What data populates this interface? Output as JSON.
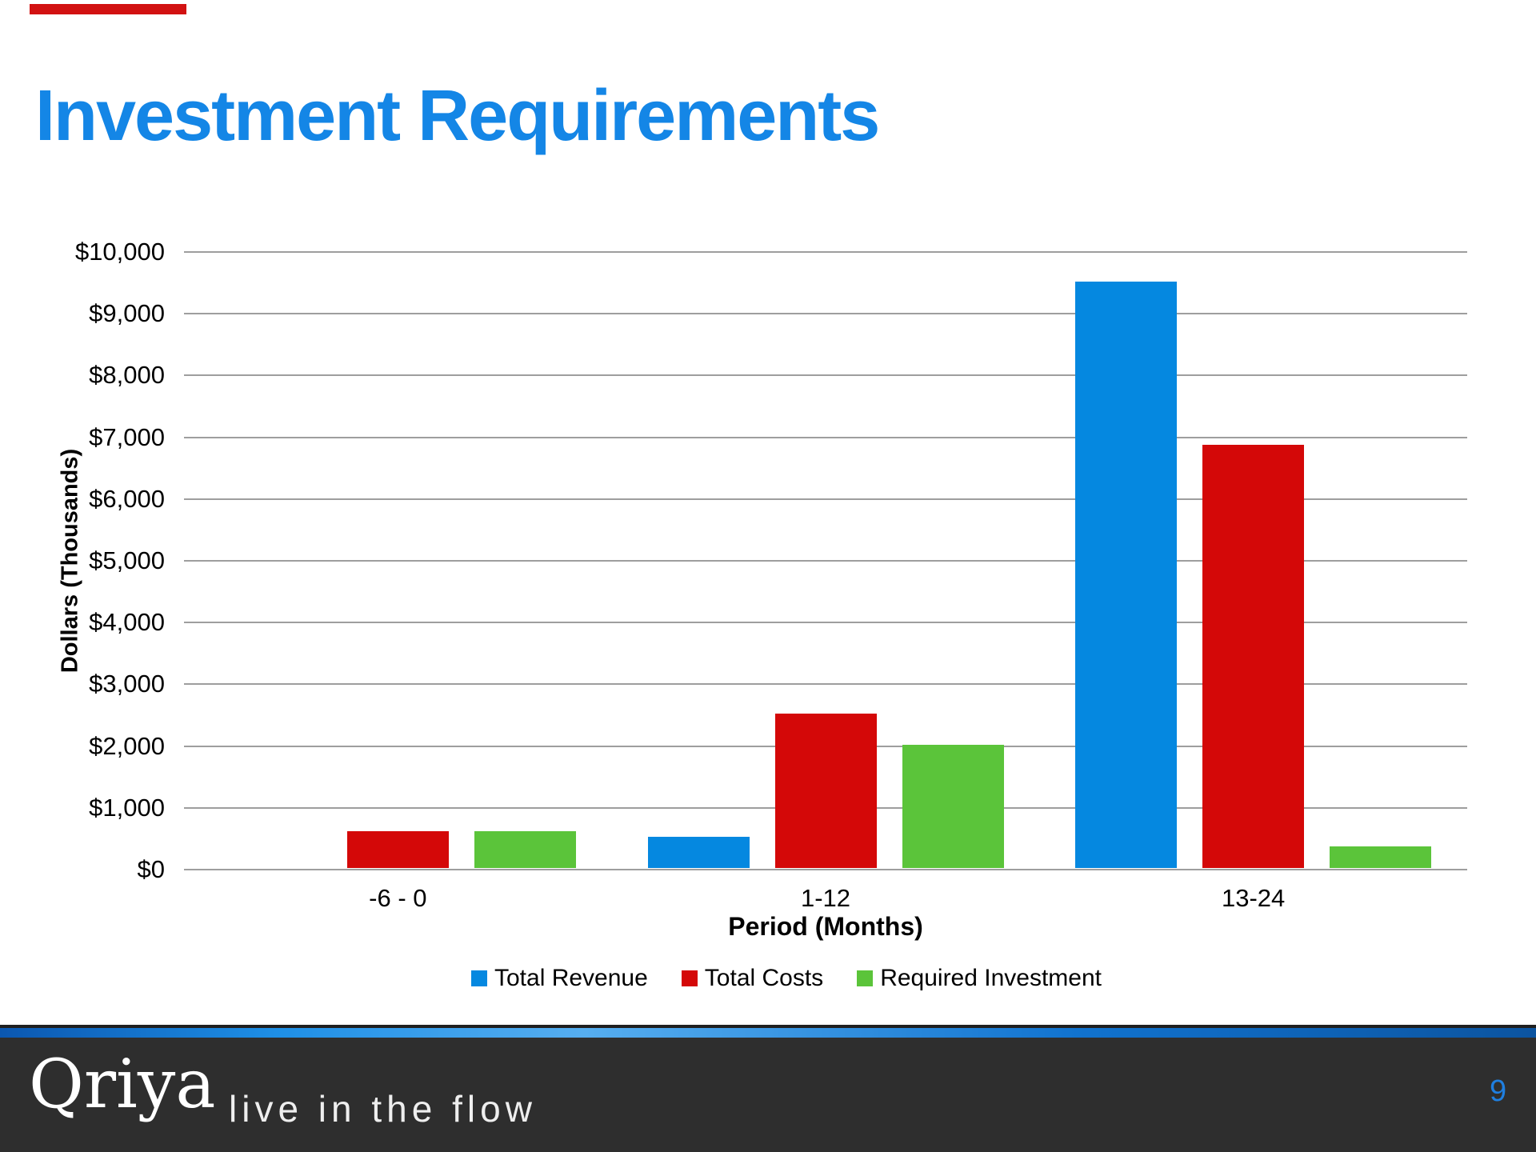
{
  "title": "Investment Requirements",
  "chart_data": {
    "type": "bar",
    "title": "",
    "categories": [
      "-6 - 0",
      "1-12",
      "13-24"
    ],
    "series": [
      {
        "name": "Total Revenue",
        "color": "#0588e0",
        "values": [
          0,
          500,
          9500
        ]
      },
      {
        "name": "Total Costs",
        "color": "#d40808",
        "values": [
          600,
          2500,
          6850
        ]
      },
      {
        "name": "Required Investment",
        "color": "#5bc43a",
        "values": [
          600,
          2000,
          350
        ]
      }
    ],
    "xlabel": "Period (Months)",
    "ylabel": "Dollars (Thousands)",
    "ylim": [
      0,
      10000
    ],
    "ytick_step": 1000,
    "ytick_prefix": "$",
    "grid": true,
    "legend_position": "bottom"
  },
  "footer": {
    "logo": "Qriya",
    "tagline": "live in the flow",
    "page_number": "9"
  },
  "colors": {
    "title_color": "#1486e6",
    "gridline_color": "#9e9e9e",
    "top_bar_red": "#d21212",
    "footer_bg": "#2e2e2e",
    "footer_text": "#ffffff",
    "page_number": "#1f7fe0"
  }
}
